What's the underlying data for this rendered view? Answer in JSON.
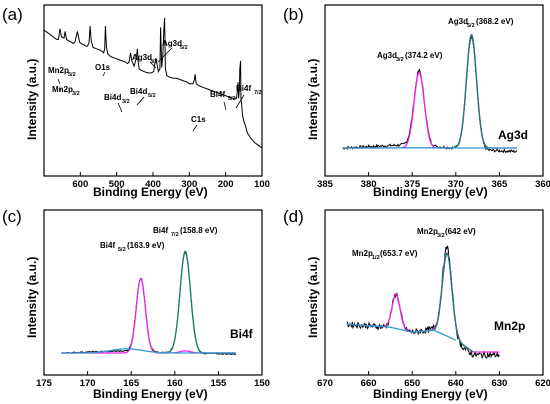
{
  "chart_data": [
    {
      "type": "line",
      "panel": "(a)",
      "xlabel": "Binding Energy (eV)",
      "ylabel": "Intensity (a.u.)",
      "xlim": [
        700,
        100
      ],
      "xticks": [
        600,
        500,
        400,
        300,
        200,
        100
      ],
      "series": [
        {
          "color": "#000000",
          "x": [
            700,
            690,
            680,
            670,
            665,
            660,
            656,
            652,
            645,
            642,
            638,
            632,
            625,
            620,
            615,
            608,
            602,
            598,
            590,
            585,
            580,
            576,
            573,
            570,
            565,
            555,
            545,
            540,
            536,
            533,
            531,
            528,
            524,
            520,
            515,
            505,
            495,
            485,
            475,
            470,
            466,
            462,
            458,
            452,
            446,
            443,
            441,
            438,
            432,
            425,
            415,
            405,
            398,
            395,
            392,
            385,
            381,
            379,
            376,
            373,
            370,
            368,
            366,
            362,
            355,
            345,
            335,
            325,
            315,
            305,
            300,
            296,
            290,
            286,
            284,
            281,
            276,
            270,
            260,
            250,
            240,
            230,
            220,
            210,
            200,
            190,
            180,
            175,
            170,
            168,
            166,
            164,
            162,
            161,
            159,
            158,
            156,
            154,
            150,
            145,
            140,
            130,
            120,
            110,
            100
          ],
          "y": [
            91,
            89,
            87,
            85,
            84,
            84,
            92,
            86,
            85,
            90,
            84,
            83,
            82,
            81,
            82,
            90,
            82,
            81,
            80,
            79,
            79,
            82,
            94,
            83,
            78,
            77,
            76,
            75,
            74,
            77,
            94,
            78,
            73,
            72,
            71,
            70,
            69,
            68,
            67,
            66,
            67,
            74,
            68,
            64,
            70,
            77,
            68,
            62,
            61,
            60,
            59,
            59,
            60,
            66,
            70,
            60,
            62,
            93,
            63,
            72,
            92,
            100,
            62,
            57,
            56,
            55,
            55,
            54,
            53,
            52,
            51,
            51,
            51,
            54,
            58,
            51,
            50,
            49,
            48,
            47,
            46,
            45,
            44,
            43,
            42,
            41,
            40,
            40,
            40,
            45,
            52,
            40,
            49,
            62,
            68,
            41,
            35,
            28,
            23,
            19,
            14,
            10,
            7,
            5,
            3
          ]
        }
      ],
      "annotations": [
        "Mn2p",
        "5/2",
        "Mn2p",
        "3/2",
        "O1s",
        "Bi4d",
        "3/2",
        "Bi4d",
        "5/2",
        "Ag3d",
        "3/2",
        "Ag3d",
        "5/2",
        "C1s",
        "Bi4f",
        "5/2",
        "Bi4f",
        "7/2"
      ]
    },
    {
      "type": "line",
      "panel": "(b)",
      "element": "Ag3d",
      "xlabel": "Binding Energy (eV)",
      "ylabel": "Intensity (a.u.)",
      "xlim": [
        385,
        360
      ],
      "xticks": [
        385,
        380,
        375,
        370,
        365,
        360
      ],
      "peaks": [
        {
          "label": "Ag3d",
          "sub": "3/2",
          "value": "(374.2 eV)",
          "center": 374.2
        },
        {
          "label": "Ag3d",
          "sub": "5/2",
          "value": "(368.2 eV)",
          "center": 368.2
        }
      ],
      "series": [
        {
          "color": "#000000",
          "model": "peaks",
          "baseline": 0,
          "bg": [
            [
              383,
              0
            ],
            [
              375,
              3
            ],
            [
              372,
              1
            ],
            [
              368,
              -1
            ],
            [
              366,
              -2
            ],
            [
              363,
              -3
            ]
          ],
          "noise": 1.2,
          "range": [
            383,
            363
          ],
          "peaks": [
            {
              "c": 374.2,
              "a": 63,
              "w": 0.58
            },
            {
              "c": 368.2,
              "a": 95,
              "w": 0.58
            }
          ]
        },
        {
          "color": "#ee22ee",
          "model": "peaks",
          "baseline": 0,
          "noise": 0,
          "range": [
            383,
            363
          ],
          "peaks": [
            {
              "c": 374.2,
              "a": 64,
              "w": 0.58
            },
            {
              "c": 368.2,
              "a": 96,
              "w": 0.58
            }
          ]
        },
        {
          "color": "#16806a",
          "model": "peaks",
          "baseline": 0,
          "noise": 0,
          "range": [
            371,
            365
          ],
          "peaks": [
            {
              "c": 368.2,
              "a": 96,
              "w": 0.58
            }
          ]
        },
        {
          "color": "#3399cc",
          "model": "peaks",
          "baseline": 0,
          "noise": 0,
          "range": [
            383,
            363
          ],
          "peaks": [
            {
              "c": 374.2,
              "a": 0.2,
              "w": 2.5
            }
          ]
        }
      ]
    },
    {
      "type": "line",
      "panel": "(c)",
      "element": "Bi4f",
      "xlabel": "Binding Energy (eV)",
      "ylabel": "Intensity (a.u.)",
      "xlim": [
        175,
        150
      ],
      "xticks": [
        175,
        170,
        165,
        160,
        155,
        150
      ],
      "peaks": [
        {
          "label": "Bi4f",
          "sub": "5/2",
          "value": "(163.9 eV)",
          "center": 163.9
        },
        {
          "label": "Bi4f",
          "sub": "7/2",
          "value": "(158.8 eV)",
          "center": 158.8
        }
      ],
      "series": [
        {
          "color": "#000000",
          "model": "peaks",
          "baseline": 0,
          "bg": [
            [
              173,
              0
            ],
            [
              166,
              2
            ],
            [
              163,
              1
            ],
            [
              159,
              0
            ],
            [
              153,
              -1
            ]
          ],
          "noise": 0.6,
          "range": [
            173,
            153
          ],
          "peaks": [
            {
              "c": 163.9,
              "a": 70,
              "w": 0.52
            },
            {
              "c": 158.8,
              "a": 96,
              "w": 0.6
            }
          ]
        },
        {
          "color": "#ee22ee",
          "model": "peaks",
          "baseline": 0,
          "noise": 0,
          "range": [
            173,
            153
          ],
          "peaks": [
            {
              "c": 163.9,
              "a": 71,
              "w": 0.52
            },
            {
              "c": 158.8,
              "a": 2,
              "w": 0.6
            }
          ]
        },
        {
          "color": "#16806a",
          "model": "peaks",
          "baseline": 0,
          "noise": 0,
          "range": [
            161.5,
            153
          ],
          "peaks": [
            {
              "c": 158.8,
              "a": 97,
              "w": 0.6
            }
          ]
        },
        {
          "color": "#3399cc",
          "model": "peaks",
          "baseline": 0,
          "noise": 0,
          "range": [
            173,
            153
          ],
          "peaks": [
            {
              "c": 165.5,
              "a": 4,
              "w": 1.8
            }
          ]
        }
      ]
    },
    {
      "type": "line",
      "panel": "(d)",
      "element": "Mn2p",
      "xlabel": "Binding Energy (eV)",
      "ylabel": "Intensity (a.u.)",
      "xlim": [
        670,
        620
      ],
      "xticks": [
        670,
        660,
        650,
        640,
        630,
        620
      ],
      "peaks": [
        {
          "label": "Mn2p",
          "sub": "1/2",
          "value": "(653.7 eV)",
          "center": 653.7
        },
        {
          "label": "Mn2p",
          "sub": "3/2",
          "value": "(642 eV)",
          "center": 642
        }
      ],
      "series": [
        {
          "color": "#000000",
          "model": "peaks",
          "baseline": 0,
          "bg": [
            [
              665,
              28
            ],
            [
              655,
              25
            ],
            [
              650,
              20
            ],
            [
              645,
              23
            ],
            [
              640,
              10
            ],
            [
              636,
              -3
            ],
            [
              630,
              -3
            ]
          ],
          "noise": 3,
          "range": [
            665,
            630
          ],
          "peaks": [
            {
              "c": 653.7,
              "a": 35,
              "w": 0.9
            },
            {
              "c": 642,
              "a": 90,
              "w": 1.1
            }
          ]
        },
        {
          "color": "#ee22ee",
          "model": "peaks",
          "baseline": 0,
          "bg": [
            [
              665,
              28
            ],
            [
              655,
              25
            ],
            [
              650,
              20
            ],
            [
              645,
              22
            ],
            [
              640,
              12
            ],
            [
              636,
              0
            ],
            [
              630,
              0
            ]
          ],
          "noise": 0,
          "range": [
            665,
            630
          ],
          "peaks": [
            {
              "c": 653.7,
              "a": 35,
              "w": 0.9
            },
            {
              "c": 642,
              "a": 84,
              "w": 1.1
            }
          ]
        },
        {
          "color": "#16806a",
          "model": "peaks",
          "baseline": 0,
          "bg": [
            [
              646,
              22
            ],
            [
              640,
              12
            ],
            [
              636,
              0
            ],
            [
              635,
              0
            ]
          ],
          "noise": 0,
          "range": [
            646,
            636
          ],
          "peaks": [
            {
              "c": 642,
              "a": 84,
              "w": 1.1
            }
          ]
        },
        {
          "color": "#3399cc",
          "model": "peaks",
          "baseline": 0,
          "bg": [
            [
              665,
              28
            ],
            [
              655,
              25
            ],
            [
              650,
              20
            ],
            [
              645,
              22
            ],
            [
              640,
              12
            ],
            [
              636,
              0
            ],
            [
              630,
              0
            ]
          ],
          "noise": 0,
          "range": [
            665,
            640
          ],
          "peaks": []
        }
      ]
    }
  ]
}
